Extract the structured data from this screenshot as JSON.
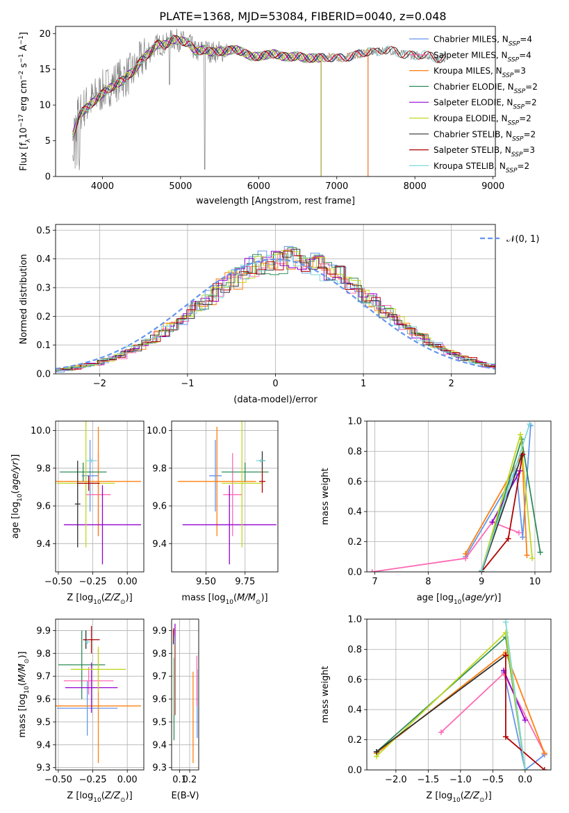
{
  "chart_data": [
    {
      "id": "spectrum",
      "type": "line",
      "title": "PLATE=1368, MJD=53084, FIBERID=0040, z=0.048",
      "xlabel": "wavelength [Angstrom, rest frame]",
      "ylabel": "Flux [f_λ10^-17 erg cm^-2 s^-1 A^-1]",
      "xlim": [
        3400,
        9030
      ],
      "ylim": [
        0,
        21
      ],
      "xticks": [
        4000,
        5000,
        6000,
        7000,
        8000,
        9000
      ],
      "yticks": [
        0,
        5,
        10,
        15,
        20
      ],
      "legend_position": "upper right",
      "data_color": "#808080",
      "data_profile": [
        [
          3620,
          6
        ],
        [
          3700,
          9
        ],
        [
          3800,
          10
        ],
        [
          3900,
          11
        ],
        [
          4000,
          12
        ],
        [
          4100,
          12.8
        ],
        [
          4200,
          13.5
        ],
        [
          4300,
          14
        ],
        [
          4400,
          14.7
        ],
        [
          4500,
          16.3
        ],
        [
          4600,
          17.3
        ],
        [
          4700,
          18.5
        ],
        [
          4800,
          18.4
        ],
        [
          4900,
          19.2
        ],
        [
          5000,
          19.0
        ],
        [
          5100,
          18.7
        ],
        [
          5200,
          17.4
        ],
        [
          5300,
          17.8
        ],
        [
          5400,
          17.4
        ],
        [
          5500,
          17.5
        ],
        [
          5600,
          17.6
        ],
        [
          5700,
          17.8
        ],
        [
          5800,
          17.4
        ],
        [
          5900,
          16.8
        ],
        [
          6000,
          16.8
        ],
        [
          6100,
          17.0
        ],
        [
          6200,
          17.2
        ],
        [
          6300,
          16.8
        ],
        [
          6400,
          16.7
        ],
        [
          6500,
          16.9
        ],
        [
          6600,
          16.5
        ],
        [
          6700,
          16.6
        ],
        [
          6800,
          16.6
        ],
        [
          6900,
          16.7
        ],
        [
          7000,
          16.5
        ],
        [
          7100,
          16.7
        ],
        [
          7200,
          16.8
        ],
        [
          7300,
          17.2
        ],
        [
          7400,
          17.5
        ],
        [
          7500,
          17.3
        ],
        [
          7600,
          17.8
        ],
        [
          7700,
          17.6
        ],
        [
          7800,
          17.3
        ],
        [
          7900,
          17.0
        ],
        [
          8000,
          16.9
        ],
        [
          8100,
          17.1
        ],
        [
          8200,
          16.8
        ],
        [
          8300,
          16.5
        ],
        [
          8400,
          16.6
        ]
      ],
      "series": [
        {
          "name": "Chabrier MILES, N_SSP=4",
          "color": "#6495ed",
          "end_x": 7400
        },
        {
          "name": "Salpeter MILES, N_SSP=4",
          "color": "#ff69b4",
          "end_x": 7400
        },
        {
          "name": "Kroupa MILES, N_SSP=3",
          "color": "#ff7f0e",
          "end_x": 7400
        },
        {
          "name": "Chabrier ELODIE, N_SSP=2",
          "color": "#2e8b57",
          "end_x": 6800
        },
        {
          "name": "Salpeter ELODIE, N_SSP=2",
          "color": "#9400d3",
          "end_x": 6800
        },
        {
          "name": "Kroupa ELODIE, N_SSP=2",
          "color": "#c0d820",
          "end_x": 6800
        },
        {
          "name": "Chabrier STELIB, N_SSP=2",
          "color": "#303030",
          "end_x": 8400
        },
        {
          "name": "Salpeter STELIB, N_SSP=3",
          "color": "#b00000",
          "end_x": 8400
        },
        {
          "name": "Kroupa STELIB, N_SSP=2",
          "color": "#7fd8d8",
          "end_x": 8400
        }
      ]
    },
    {
      "id": "residuals",
      "type": "histogram",
      "xlabel": "(data-model)/error",
      "ylabel": "Normed distribution",
      "xlim": [
        -2.5,
        2.5
      ],
      "ylim": [
        0,
        0.52
      ],
      "xticks": [
        -2,
        -1,
        0,
        1,
        2
      ],
      "yticks": [
        0.0,
        0.1,
        0.2,
        0.3,
        0.4,
        0.5
      ],
      "legend_position": "upper right",
      "legend_label": "𝒩(0, 1)",
      "reference_curve": {
        "name": "N(0,1)",
        "mean": 0,
        "sigma": 1,
        "color": "#6495ed",
        "style": "dashed"
      },
      "bin_width": 0.1,
      "series_colors": [
        "#6495ed",
        "#ff69b4",
        "#ff7f0e",
        "#2e8b57",
        "#9400d3",
        "#c0d820",
        "#303030",
        "#b00000",
        "#7fd8d8"
      ]
    },
    {
      "id": "age-vs-Z",
      "type": "errorbar",
      "xlabel": "Z [log10(Z/Z_sun)]",
      "ylabel": "age [log10(age/yr)]",
      "xlim": [
        -0.52,
        0.12
      ],
      "ylim": [
        9.25,
        10.05
      ],
      "xticks": [
        -0.5,
        -0.25,
        0.0
      ],
      "yticks": [
        9.4,
        9.6,
        9.8,
        10.0
      ],
      "points": [
        {
          "x": -0.27,
          "y": 9.76,
          "xerr": 0.06,
          "yerr": 0.19,
          "color": "#6495ed"
        },
        {
          "x": -0.21,
          "y": 9.66,
          "xerr": 0.09,
          "yerr": 0.22,
          "color": "#ff69b4"
        },
        {
          "x": -0.21,
          "y": 9.73,
          "xerr": 0.31,
          "yerr": 0.29,
          "color": "#ff7f0e"
        },
        {
          "x": -0.32,
          "y": 9.78,
          "xerr": 0.17,
          "yerr": 0.05,
          "color": "#2e8b57"
        },
        {
          "x": -0.18,
          "y": 9.5,
          "xerr": 0.28,
          "yerr": 0.21,
          "color": "#9400d3"
        },
        {
          "x": -0.3,
          "y": 9.72,
          "xerr": 0.21,
          "yerr": 0.34,
          "color": "#c0d820"
        },
        {
          "x": -0.36,
          "y": 9.61,
          "xerr": 0.02,
          "yerr": 0.23,
          "color": "#303030"
        },
        {
          "x": -0.28,
          "y": 9.72,
          "xerr": 0.08,
          "yerr": 0.04,
          "color": "#b00000"
        },
        {
          "x": -0.26,
          "y": 9.84,
          "xerr": 0.04,
          "yerr": 0.01,
          "color": "#7fd8d8"
        }
      ]
    },
    {
      "id": "age-vs-mass",
      "type": "errorbar",
      "xlabel": "mass [log10(M/M_sun)]",
      "ylabel": "",
      "xlim": [
        9.28,
        9.96
      ],
      "ylim": [
        9.25,
        10.05
      ],
      "xticks": [
        9.5,
        9.75
      ],
      "yticks": [
        9.4,
        9.6,
        9.8,
        10.0
      ],
      "points": [
        {
          "x": 9.56,
          "y": 9.76,
          "xerr": 0.04,
          "yerr": 0.19,
          "color": "#6495ed"
        },
        {
          "x": 9.67,
          "y": 9.66,
          "xerr": 0.06,
          "yerr": 0.22,
          "color": "#ff69b4"
        },
        {
          "x": 9.57,
          "y": 9.73,
          "xerr": 0.25,
          "yerr": 0.29,
          "color": "#ff7f0e"
        },
        {
          "x": 9.75,
          "y": 9.78,
          "xerr": 0.15,
          "yerr": 0.05,
          "color": "#2e8b57"
        },
        {
          "x": 9.65,
          "y": 9.5,
          "xerr": 0.3,
          "yerr": 0.21,
          "color": "#9400d3"
        },
        {
          "x": 9.73,
          "y": 9.72,
          "xerr": 0.13,
          "yerr": 0.34,
          "color": "#c0d820"
        },
        {
          "x": 9.86,
          "y": 9.84,
          "xerr": 0.02,
          "yerr": 0.05,
          "color": "#303030"
        },
        {
          "x": 9.86,
          "y": 9.73,
          "xerr": 0.02,
          "yerr": 0.06,
          "color": "#b00000"
        },
        {
          "x": 9.85,
          "y": 9.84,
          "xerr": 0.03,
          "yerr": 0.01,
          "color": "#7fd8d8"
        }
      ]
    },
    {
      "id": "weight-vs-age",
      "type": "line",
      "xlabel": "age [log10(age/yr)]",
      "ylabel": "mass weight",
      "xlim": [
        6.85,
        10.3
      ],
      "ylim": [
        0,
        1.0
      ],
      "xticks": [
        7,
        8,
        9,
        10
      ],
      "yticks": [
        0.0,
        0.2,
        0.4,
        0.6,
        0.8,
        1.0
      ],
      "series": [
        {
          "color": "#6495ed",
          "points": [
            [
              8.7,
              0.1
            ],
            [
              9.65,
              0.67
            ],
            [
              9.77,
              0.23
            ],
            [
              9.92,
              0.97
            ]
          ]
        },
        {
          "color": "#ff69b4",
          "points": [
            [
              6.95,
              0.0
            ],
            [
              8.7,
              0.09
            ],
            [
              9.2,
              0.33
            ],
            [
              9.7,
              0.26
            ]
          ]
        },
        {
          "color": "#ff7f0e",
          "points": [
            [
              8.7,
              0.12
            ],
            [
              9.76,
              0.78
            ],
            [
              9.85,
              0.11
            ]
          ]
        },
        {
          "color": "#2e8b57",
          "points": [
            [
              9.0,
              0.0
            ],
            [
              9.75,
              0.88
            ],
            [
              10.1,
              0.13
            ]
          ]
        },
        {
          "color": "#9400d3",
          "points": [
            [
              9.2,
              0.33
            ],
            [
              9.72,
              0.67
            ]
          ]
        },
        {
          "color": "#c0d820",
          "points": [
            [
              9.0,
              0.01
            ],
            [
              9.73,
              0.91
            ],
            [
              9.95,
              0.09
            ]
          ]
        },
        {
          "color": "#303030",
          "points": [
            [
              9.0,
              0.0
            ],
            [
              9.75,
              0.77
            ]
          ]
        },
        {
          "color": "#b00000",
          "points": [
            [
              9.0,
              0.0
            ],
            [
              9.5,
              0.22
            ],
            [
              9.77,
              0.78
            ]
          ]
        },
        {
          "color": "#7fd8d8",
          "points": [
            [
              9.0,
              0.01
            ],
            [
              9.9,
              0.98
            ]
          ]
        }
      ]
    },
    {
      "id": "mass-vs-Z",
      "type": "errorbar",
      "xlabel": "Z [log10(Z/Z_sun)]",
      "ylabel": "mass [log10(M/M_sun)]",
      "xlim": [
        -0.52,
        0.12
      ],
      "ylim": [
        9.29,
        9.95
      ],
      "xticks": [
        -0.5,
        -0.25,
        0.0
      ],
      "yticks": [
        9.3,
        9.4,
        9.5,
        9.6,
        9.7,
        9.8,
        9.9
      ],
      "points": [
        {
          "x": -0.29,
          "y": 9.56,
          "xerr": 0.22,
          "yerr": 0.12,
          "color": "#6495ed"
        },
        {
          "x": -0.28,
          "y": 9.68,
          "xerr": 0.18,
          "yerr": 0.06,
          "color": "#ff69b4"
        },
        {
          "x": -0.21,
          "y": 9.57,
          "xerr": 0.31,
          "yerr": 0.25,
          "color": "#ff7f0e"
        },
        {
          "x": -0.33,
          "y": 9.75,
          "xerr": 0.17,
          "yerr": 0.15,
          "color": "#2e8b57"
        },
        {
          "x": -0.26,
          "y": 9.65,
          "xerr": 0.19,
          "yerr": 0.11,
          "color": "#9400d3"
        },
        {
          "x": -0.21,
          "y": 9.73,
          "xerr": 0.2,
          "yerr": 0.1,
          "color": "#c0d820"
        },
        {
          "x": -0.3,
          "y": 9.86,
          "xerr": 0.02,
          "yerr": 0.04,
          "color": "#303030"
        },
        {
          "x": -0.26,
          "y": 9.86,
          "xerr": 0.06,
          "yerr": 0.06,
          "color": "#b00000"
        },
        {
          "x": -0.29,
          "y": 9.85,
          "xerr": 0.02,
          "yerr": 0.01,
          "color": "#7fd8d8"
        }
      ]
    },
    {
      "id": "mass-vs-ebv",
      "type": "errorbar",
      "xlabel": "E(B-V)",
      "ylabel": "",
      "xlim": [
        0.02,
        0.29
      ],
      "ylim": [
        9.29,
        9.95
      ],
      "xticks": [
        0.1,
        0.2
      ],
      "yticks": [
        9.3,
        9.4,
        9.5,
        9.6,
        9.7,
        9.8,
        9.9
      ],
      "points": [
        {
          "x": 0.275,
          "y": 9.58,
          "xerr": 0.0,
          "yerr": 0.15,
          "color": "#6495ed"
        },
        {
          "x": 0.272,
          "y": 9.68,
          "xerr": 0.0,
          "yerr": 0.11,
          "color": "#ff69b4"
        },
        {
          "x": 0.234,
          "y": 9.52,
          "xerr": 0.0,
          "yerr": 0.2,
          "color": "#ff7f0e"
        },
        {
          "x": 0.044,
          "y": 9.6,
          "xerr": 0.0,
          "yerr": 0.18,
          "color": "#2e8b57"
        },
        {
          "x": 0.054,
          "y": 9.73,
          "xerr": 0.0,
          "yerr": 0.2,
          "color": "#9400d3"
        },
        {
          "x": 0.048,
          "y": 9.7,
          "xerr": 0.0,
          "yerr": 0.17,
          "color": "#c0d820"
        },
        {
          "x": 0.038,
          "y": 9.87,
          "xerr": 0.0,
          "yerr": 0.03,
          "color": "#303030"
        },
        {
          "x": 0.04,
          "y": 9.88,
          "xerr": 0.0,
          "yerr": 0.03,
          "color": "#b00000"
        },
        {
          "x": 0.046,
          "y": 9.86,
          "xerr": 0.0,
          "yerr": 0.02,
          "color": "#7fd8d8"
        }
      ]
    },
    {
      "id": "weight-vs-Z",
      "type": "line",
      "xlabel": "Z [log10(Z/Z_sun)]",
      "ylabel": "mass weight",
      "xlim": [
        -2.45,
        0.4
      ],
      "ylim": [
        0,
        1.0
      ],
      "xticks": [
        -2.0,
        -1.5,
        -1.0,
        -0.5,
        0.0
      ],
      "yticks": [
        0.0,
        0.2,
        0.4,
        0.6,
        0.8,
        1.0
      ],
      "series": [
        {
          "color": "#6495ed",
          "points": [
            [
              -0.33,
              0.65
            ],
            [
              0.0,
              0.0
            ],
            [
              0.3,
              0.1
            ]
          ]
        },
        {
          "color": "#ff69b4",
          "points": [
            [
              -1.3,
              0.25
            ],
            [
              -0.33,
              0.64
            ],
            [
              0.3,
              0.11
            ]
          ]
        },
        {
          "color": "#ff7f0e",
          "points": [
            [
              -2.3,
              0.11
            ],
            [
              -0.3,
              0.78
            ],
            [
              0.3,
              0.11
            ]
          ]
        },
        {
          "color": "#2e8b57",
          "points": [
            [
              -2.3,
              0.12
            ],
            [
              -0.3,
              0.88
            ],
            [
              0.0,
              0.0
            ]
          ]
        },
        {
          "color": "#9400d3",
          "points": [
            [
              -0.33,
              0.66
            ],
            [
              0.0,
              0.33
            ]
          ]
        },
        {
          "color": "#c0d820",
          "points": [
            [
              -2.3,
              0.09
            ],
            [
              -0.3,
              0.91
            ],
            [
              0.0,
              0.0
            ]
          ]
        },
        {
          "color": "#303030",
          "points": [
            [
              -2.3,
              0.12
            ],
            [
              -0.3,
              0.76
            ]
          ]
        },
        {
          "color": "#b00000",
          "points": [
            [
              -0.3,
              0.76
            ],
            [
              -0.3,
              0.22
            ],
            [
              0.3,
              0.0
            ]
          ]
        },
        {
          "color": "#7fd8d8",
          "points": [
            [
              -0.3,
              0.98
            ],
            [
              0.0,
              0.0
            ]
          ]
        }
      ]
    }
  ]
}
